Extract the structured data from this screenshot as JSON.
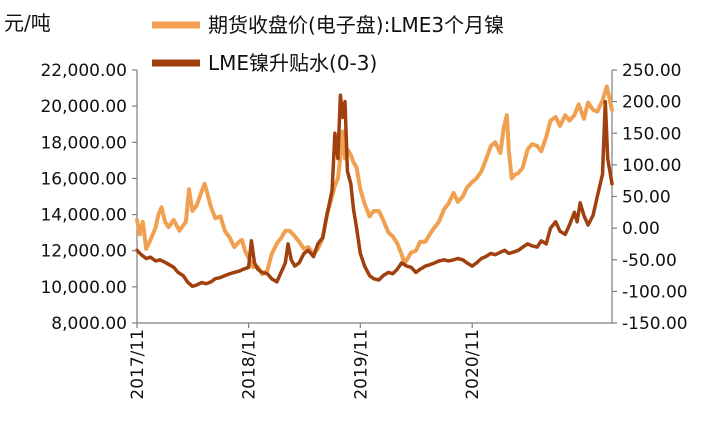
{
  "chart_data": {
    "type": "line",
    "y_unit_label": "元/吨",
    "legend_position": "top",
    "grid": false,
    "x_tick_labels": [
      "2017/11",
      "2018/11",
      "2019/11",
      "2020/11"
    ],
    "y_left": {
      "range": [
        8000,
        22000
      ],
      "ticks": [
        "8,000.00",
        "10,000.00",
        "12,000.00",
        "14,000.00",
        "16,000.00",
        "18,000.00",
        "20,000.00",
        "22,000.00"
      ]
    },
    "y_right": {
      "range": [
        -150,
        250
      ],
      "ticks": [
        "-150.00",
        "-100.00",
        "-50.00",
        "0.00",
        "50.00",
        "100.00",
        "150.00",
        "200.00",
        "250.00"
      ]
    },
    "series": [
      {
        "name": "期货收盘价(电子盘):LME3个月镍",
        "axis": "left",
        "color": "#F0A050",
        "points": [
          [
            "2017-11-01",
            13700
          ],
          [
            "2017-11-10",
            12900
          ],
          [
            "2017-11-20",
            13600
          ],
          [
            "2017-12-01",
            12100
          ],
          [
            "2017-12-15",
            12600
          ],
          [
            "2018-01-01",
            13300
          ],
          [
            "2018-01-10",
            14000
          ],
          [
            "2018-01-20",
            14400
          ],
          [
            "2018-02-01",
            13600
          ],
          [
            "2018-02-12",
            13300
          ],
          [
            "2018-03-01",
            13700
          ],
          [
            "2018-03-20",
            13100
          ],
          [
            "2018-04-01",
            13400
          ],
          [
            "2018-04-10",
            13600
          ],
          [
            "2018-04-20",
            15400
          ],
          [
            "2018-05-01",
            14200
          ],
          [
            "2018-05-15",
            14500
          ],
          [
            "2018-06-01",
            15300
          ],
          [
            "2018-06-10",
            15700
          ],
          [
            "2018-06-20",
            15100
          ],
          [
            "2018-07-01",
            14400
          ],
          [
            "2018-07-15",
            13800
          ],
          [
            "2018-08-01",
            13900
          ],
          [
            "2018-08-15",
            13100
          ],
          [
            "2018-09-01",
            12700
          ],
          [
            "2018-09-15",
            12200
          ],
          [
            "2018-10-01",
            12500
          ],
          [
            "2018-10-10",
            12600
          ],
          [
            "2018-10-20",
            12000
          ],
          [
            "2018-11-01",
            11600
          ],
          [
            "2018-11-15",
            11100
          ],
          [
            "2018-12-01",
            11100
          ],
          [
            "2018-12-15",
            10700
          ],
          [
            "2019-01-01",
            10900
          ],
          [
            "2019-01-15",
            11800
          ],
          [
            "2019-02-01",
            12400
          ],
          [
            "2019-02-15",
            12700
          ],
          [
            "2019-03-01",
            13100
          ],
          [
            "2019-03-15",
            13100
          ],
          [
            "2019-04-01",
            12800
          ],
          [
            "2019-04-15",
            12500
          ],
          [
            "2019-05-01",
            12100
          ],
          [
            "2019-05-15",
            12200
          ],
          [
            "2019-06-01",
            11800
          ],
          [
            "2019-06-15",
            12100
          ],
          [
            "2019-07-01",
            12700
          ],
          [
            "2019-07-15",
            14000
          ],
          [
            "2019-08-01",
            15000
          ],
          [
            "2019-08-10",
            15600
          ],
          [
            "2019-08-20",
            16000
          ],
          [
            "2019-09-01",
            17800
          ],
          [
            "2019-09-05",
            18600
          ],
          [
            "2019-09-12",
            17100
          ],
          [
            "2019-09-20",
            17600
          ],
          [
            "2019-10-01",
            17300
          ],
          [
            "2019-10-10",
            16900
          ],
          [
            "2019-10-20",
            16600
          ],
          [
            "2019-11-01",
            15400
          ],
          [
            "2019-11-15",
            14600
          ],
          [
            "2019-12-01",
            13900
          ],
          [
            "2019-12-15",
            14200
          ],
          [
            "2020-01-01",
            14200
          ],
          [
            "2020-01-15",
            13700
          ],
          [
            "2020-02-01",
            13000
          ],
          [
            "2020-02-15",
            12800
          ],
          [
            "2020-03-01",
            12400
          ],
          [
            "2020-03-15",
            11800
          ],
          [
            "2020-03-25",
            11300
          ],
          [
            "2020-04-05",
            11600
          ],
          [
            "2020-04-15",
            11900
          ],
          [
            "2020-05-01",
            12000
          ],
          [
            "2020-05-15",
            12500
          ],
          [
            "2020-06-01",
            12500
          ],
          [
            "2020-06-15",
            12900
          ],
          [
            "2020-07-01",
            13300
          ],
          [
            "2020-07-15",
            13600
          ],
          [
            "2020-08-01",
            14300
          ],
          [
            "2020-08-15",
            14600
          ],
          [
            "2020-09-01",
            15200
          ],
          [
            "2020-09-15",
            14700
          ],
          [
            "2020-10-01",
            15000
          ],
          [
            "2020-10-15",
            15500
          ],
          [
            "2020-11-01",
            15800
          ],
          [
            "2020-11-15",
            16000
          ],
          [
            "2020-12-01",
            16400
          ],
          [
            "2020-12-15",
            17000
          ],
          [
            "2021-01-01",
            17800
          ],
          [
            "2021-01-15",
            18000
          ],
          [
            "2021-02-01",
            17400
          ],
          [
            "2021-02-12",
            18800
          ],
          [
            "2021-02-22",
            19500
          ],
          [
            "2021-03-01",
            17500
          ],
          [
            "2021-03-10",
            16000
          ],
          [
            "2021-03-20",
            16200
          ],
          [
            "2021-04-01",
            16300
          ],
          [
            "2021-04-15",
            16600
          ],
          [
            "2021-05-01",
            17600
          ],
          [
            "2021-05-15",
            17900
          ],
          [
            "2021-06-01",
            17800
          ],
          [
            "2021-06-15",
            17500
          ],
          [
            "2021-07-01",
            18300
          ],
          [
            "2021-07-15",
            19200
          ],
          [
            "2021-08-01",
            19400
          ],
          [
            "2021-08-15",
            18900
          ],
          [
            "2021-09-01",
            19500
          ],
          [
            "2021-09-15",
            19200
          ],
          [
            "2021-10-01",
            19500
          ],
          [
            "2021-10-15",
            20100
          ],
          [
            "2021-11-01",
            19300
          ],
          [
            "2021-11-15",
            20200
          ],
          [
            "2021-12-01",
            19800
          ],
          [
            "2021-12-15",
            19700
          ],
          [
            "2022-01-01",
            20300
          ],
          [
            "2022-01-15",
            21100
          ],
          [
            "2022-02-01",
            19800
          ]
        ]
      },
      {
        "name": "LME镍升贴水(0-3)",
        "axis": "right",
        "color": "#A0400E",
        "points": [
          [
            "2017-11-01",
            -35
          ],
          [
            "2017-11-15",
            -42
          ],
          [
            "2017-12-01",
            -48
          ],
          [
            "2017-12-15",
            -46
          ],
          [
            "2018-01-01",
            -52
          ],
          [
            "2018-01-15",
            -50
          ],
          [
            "2018-02-01",
            -54
          ],
          [
            "2018-02-15",
            -58
          ],
          [
            "2018-03-01",
            -62
          ],
          [
            "2018-03-15",
            -70
          ],
          [
            "2018-04-01",
            -75
          ],
          [
            "2018-04-15",
            -85
          ],
          [
            "2018-05-01",
            -92
          ],
          [
            "2018-05-15",
            -90
          ],
          [
            "2018-06-01",
            -86
          ],
          [
            "2018-06-15",
            -88
          ],
          [
            "2018-07-01",
            -85
          ],
          [
            "2018-07-15",
            -80
          ],
          [
            "2018-08-01",
            -78
          ],
          [
            "2018-08-15",
            -75
          ],
          [
            "2018-09-01",
            -72
          ],
          [
            "2018-09-15",
            -70
          ],
          [
            "2018-10-01",
            -68
          ],
          [
            "2018-10-15",
            -65
          ],
          [
            "2018-11-01",
            -62
          ],
          [
            "2018-11-10",
            -20
          ],
          [
            "2018-11-20",
            -55
          ],
          [
            "2018-12-01",
            -65
          ],
          [
            "2018-12-15",
            -70
          ],
          [
            "2019-01-01",
            -72
          ],
          [
            "2019-01-15",
            -80
          ],
          [
            "2019-02-01",
            -85
          ],
          [
            "2019-02-15",
            -70
          ],
          [
            "2019-03-01",
            -55
          ],
          [
            "2019-03-10",
            -25
          ],
          [
            "2019-03-20",
            -50
          ],
          [
            "2019-04-01",
            -60
          ],
          [
            "2019-04-15",
            -55
          ],
          [
            "2019-05-01",
            -40
          ],
          [
            "2019-05-15",
            -35
          ],
          [
            "2019-06-01",
            -45
          ],
          [
            "2019-06-15",
            -25
          ],
          [
            "2019-07-01",
            -15
          ],
          [
            "2019-07-15",
            20
          ],
          [
            "2019-08-01",
            60
          ],
          [
            "2019-08-10",
            150
          ],
          [
            "2019-08-20",
            110
          ],
          [
            "2019-08-28",
            210
          ],
          [
            "2019-09-05",
            175
          ],
          [
            "2019-09-12",
            200
          ],
          [
            "2019-09-20",
            90
          ],
          [
            "2019-10-01",
            70
          ],
          [
            "2019-10-10",
            30
          ],
          [
            "2019-10-20",
            0
          ],
          [
            "2019-11-01",
            -40
          ],
          [
            "2019-11-15",
            -60
          ],
          [
            "2019-12-01",
            -75
          ],
          [
            "2019-12-15",
            -80
          ],
          [
            "2020-01-01",
            -82
          ],
          [
            "2020-01-15",
            -75
          ],
          [
            "2020-02-01",
            -70
          ],
          [
            "2020-02-15",
            -72
          ],
          [
            "2020-03-01",
            -65
          ],
          [
            "2020-03-15",
            -55
          ],
          [
            "2020-04-01",
            -60
          ],
          [
            "2020-04-15",
            -62
          ],
          [
            "2020-05-01",
            -70
          ],
          [
            "2020-05-15",
            -65
          ],
          [
            "2020-06-01",
            -60
          ],
          [
            "2020-06-15",
            -58
          ],
          [
            "2020-07-01",
            -55
          ],
          [
            "2020-07-15",
            -52
          ],
          [
            "2020-08-01",
            -50
          ],
          [
            "2020-08-15",
            -52
          ],
          [
            "2020-09-01",
            -50
          ],
          [
            "2020-09-15",
            -48
          ],
          [
            "2020-10-01",
            -50
          ],
          [
            "2020-10-15",
            -55
          ],
          [
            "2020-11-01",
            -60
          ],
          [
            "2020-11-15",
            -55
          ],
          [
            "2020-12-01",
            -48
          ],
          [
            "2020-12-15",
            -45
          ],
          [
            "2021-01-01",
            -40
          ],
          [
            "2021-01-15",
            -42
          ],
          [
            "2021-02-01",
            -38
          ],
          [
            "2021-02-15",
            -35
          ],
          [
            "2021-03-01",
            -40
          ],
          [
            "2021-03-15",
            -38
          ],
          [
            "2021-04-01",
            -35
          ],
          [
            "2021-04-15",
            -30
          ],
          [
            "2021-05-01",
            -25
          ],
          [
            "2021-05-15",
            -28
          ],
          [
            "2021-06-01",
            -30
          ],
          [
            "2021-06-15",
            -20
          ],
          [
            "2021-07-01",
            -25
          ],
          [
            "2021-07-15",
            0
          ],
          [
            "2021-08-01",
            10
          ],
          [
            "2021-08-15",
            -5
          ],
          [
            "2021-09-01",
            -10
          ],
          [
            "2021-09-15",
            5
          ],
          [
            "2021-10-01",
            25
          ],
          [
            "2021-10-10",
            10
          ],
          [
            "2021-10-20",
            40
          ],
          [
            "2021-11-01",
            20
          ],
          [
            "2021-11-15",
            5
          ],
          [
            "2021-12-01",
            20
          ],
          [
            "2021-12-15",
            50
          ],
          [
            "2022-01-01",
            85
          ],
          [
            "2022-01-10",
            200
          ],
          [
            "2022-01-18",
            110
          ],
          [
            "2022-02-01",
            70
          ]
        ]
      }
    ]
  }
}
